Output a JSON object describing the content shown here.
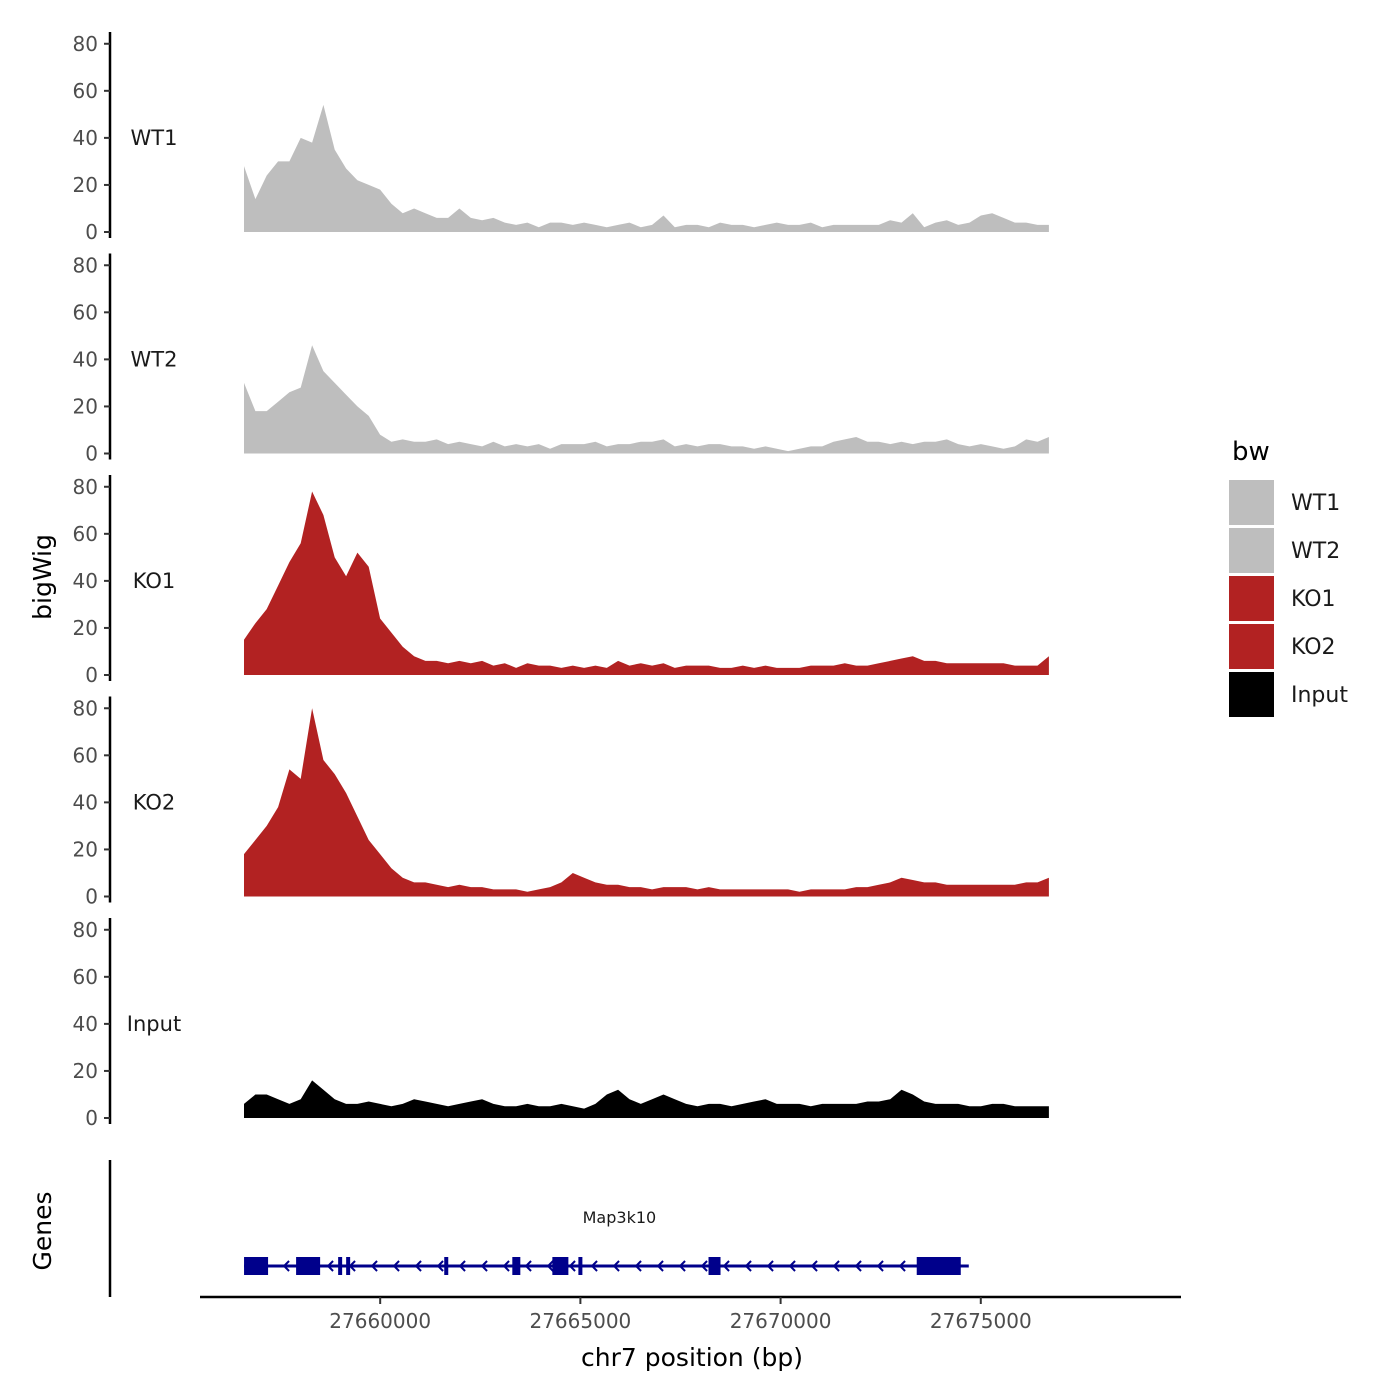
{
  "chart_data": {
    "type": "area",
    "ylabel": "bigWig",
    "xlabel": "chr7 position (bp)",
    "ylim": [
      0,
      85
    ],
    "yticks": [
      0,
      20,
      40,
      60,
      80
    ],
    "xlim": [
      27655500,
      27680000
    ],
    "xticks": [
      27660000,
      27665000,
      27670000,
      27675000
    ],
    "x_tick_labels": [
      "27660000",
      "27665000",
      "27670000",
      "27675000"
    ],
    "data_range": [
      27656600,
      27676700
    ],
    "legend": {
      "title": "bw",
      "position": "right",
      "entries": [
        {
          "label": "WT1",
          "color": "#bebebe"
        },
        {
          "label": "WT2",
          "color": "#bebebe"
        },
        {
          "label": "KO1",
          "color": "#b22222"
        },
        {
          "label": "KO2",
          "color": "#b22222"
        },
        {
          "label": "Input",
          "color": "#000000"
        }
      ]
    },
    "series": [
      {
        "name": "WT1",
        "color": "#bebebe",
        "values": [
          28,
          14,
          24,
          30,
          30,
          40,
          38,
          54,
          35,
          27,
          22,
          20,
          18,
          12,
          8,
          10,
          8,
          6,
          6,
          10,
          6,
          5,
          6,
          4,
          3,
          4,
          2,
          4,
          4,
          3,
          4,
          3,
          2,
          3,
          4,
          2,
          3,
          7,
          2,
          3,
          3,
          2,
          4,
          3,
          3,
          2,
          3,
          4,
          3,
          3,
          4,
          2,
          3,
          3,
          3,
          3,
          3,
          5,
          4,
          8,
          2,
          4,
          5,
          3,
          4,
          7,
          8,
          6,
          4,
          4,
          3,
          3
        ]
      },
      {
        "name": "WT2",
        "color": "#bebebe",
        "values": [
          30,
          18,
          18,
          22,
          26,
          28,
          46,
          35,
          30,
          25,
          20,
          16,
          8,
          5,
          6,
          5,
          5,
          6,
          4,
          5,
          4,
          3,
          5,
          3,
          4,
          3,
          4,
          2,
          4,
          4,
          4,
          5,
          3,
          4,
          4,
          5,
          5,
          6,
          3,
          4,
          3,
          4,
          4,
          3,
          3,
          2,
          3,
          2,
          1,
          2,
          3,
          3,
          5,
          6,
          7,
          5,
          5,
          4,
          5,
          4,
          5,
          5,
          6,
          4,
          3,
          4,
          3,
          2,
          3,
          6,
          5,
          7
        ]
      },
      {
        "name": "KO1",
        "color": "#b22222",
        "values": [
          15,
          22,
          28,
          38,
          48,
          56,
          78,
          68,
          50,
          42,
          52,
          46,
          24,
          18,
          12,
          8,
          6,
          6,
          5,
          6,
          5,
          6,
          4,
          5,
          3,
          5,
          4,
          4,
          3,
          4,
          3,
          4,
          3,
          6,
          4,
          5,
          4,
          5,
          3,
          4,
          4,
          4,
          3,
          3,
          4,
          3,
          4,
          3,
          3,
          3,
          4,
          4,
          4,
          5,
          4,
          4,
          5,
          6,
          7,
          8,
          6,
          6,
          5,
          5,
          5,
          5,
          5,
          5,
          4,
          4,
          4,
          8
        ]
      },
      {
        "name": "KO2",
        "color": "#b22222",
        "values": [
          18,
          24,
          30,
          38,
          54,
          50,
          80,
          58,
          52,
          44,
          34,
          24,
          18,
          12,
          8,
          6,
          6,
          5,
          4,
          5,
          4,
          4,
          3,
          3,
          3,
          2,
          3,
          4,
          6,
          10,
          8,
          6,
          5,
          5,
          4,
          4,
          3,
          4,
          4,
          4,
          3,
          4,
          3,
          3,
          3,
          3,
          3,
          3,
          3,
          2,
          3,
          3,
          3,
          3,
          4,
          4,
          5,
          6,
          8,
          7,
          6,
          6,
          5,
          5,
          5,
          5,
          5,
          5,
          5,
          6,
          6,
          8
        ]
      },
      {
        "name": "Input",
        "color": "#000000",
        "values": [
          6,
          10,
          10,
          8,
          6,
          8,
          16,
          12,
          8,
          6,
          6,
          7,
          6,
          5,
          6,
          8,
          7,
          6,
          5,
          6,
          7,
          8,
          6,
          5,
          5,
          6,
          5,
          5,
          6,
          5,
          4,
          6,
          10,
          12,
          8,
          6,
          8,
          10,
          8,
          6,
          5,
          6,
          6,
          5,
          6,
          7,
          8,
          6,
          6,
          6,
          5,
          6,
          6,
          6,
          6,
          7,
          7,
          8,
          12,
          10,
          7,
          6,
          6,
          6,
          5,
          5,
          6,
          6,
          5,
          5,
          5,
          5
        ]
      }
    ],
    "genes_track": {
      "label": "Genes",
      "gene_name": "Map3k10",
      "strand": "-",
      "color": "#00008b",
      "start": 27656600,
      "end": 27674700,
      "exons": [
        [
          27656600,
          27657200
        ],
        [
          27657900,
          27658500
        ],
        [
          27658950,
          27659050
        ],
        [
          27659150,
          27659250
        ],
        [
          27661600,
          27661700
        ],
        [
          27663300,
          27663500
        ],
        [
          27664300,
          27664700
        ],
        [
          27664950,
          27665050
        ],
        [
          27668200,
          27668500
        ],
        [
          27673400,
          27674500
        ]
      ]
    }
  }
}
